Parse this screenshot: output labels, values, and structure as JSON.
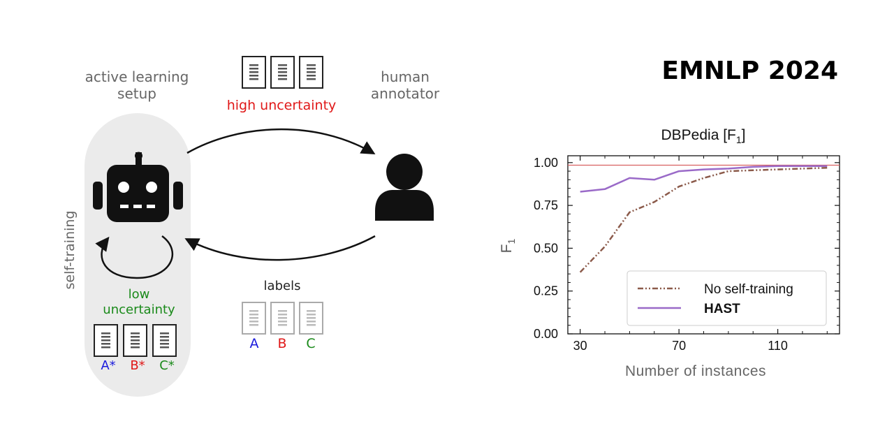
{
  "venue": "EMNLP 2024",
  "diagram": {
    "setup_label_line1": "active learning",
    "setup_label_line2": "setup",
    "annotator_label_line1": "human",
    "annotator_label_line2": "annotator",
    "high_uncertainty": "high uncertainty",
    "labels_caption": "labels",
    "self_training": "self-training",
    "low_uncertainty_line1": "low",
    "low_uncertainty_line2": "uncertainty",
    "human_labels": [
      "A",
      "B",
      "C"
    ],
    "pseudo_labels": [
      "A*",
      "B*",
      "C*"
    ],
    "colors": {
      "a": "#1a1adc",
      "b": "#e01818",
      "c": "#1a8a1a",
      "high": "#e01818",
      "low": "#1a8a1a",
      "pill": "#ebebeb"
    }
  },
  "chart_data": {
    "type": "line",
    "title": "DBPedia [F",
    "title_sub": "1",
    "title_end": "]",
    "xlabel": "Number of instances",
    "ylabel": "F",
    "ylabel_sub": "1",
    "xlim": [
      25,
      135
    ],
    "ylim": [
      0,
      1.04
    ],
    "xticks": [
      30,
      70,
      110
    ],
    "yticks": [
      "0.00",
      "0.25",
      "0.50",
      "0.75",
      "1.00"
    ],
    "ytick_values": [
      0,
      0.25,
      0.5,
      0.75,
      1.0
    ],
    "reference_line": 0.985,
    "series": [
      {
        "name": "No self-training",
        "color": "#8b5a4a",
        "style": "dashdot",
        "x": [
          30,
          40,
          50,
          60,
          70,
          80,
          90,
          100,
          110,
          120,
          130
        ],
        "y": [
          0.36,
          0.51,
          0.71,
          0.77,
          0.86,
          0.91,
          0.95,
          0.955,
          0.96,
          0.965,
          0.97
        ]
      },
      {
        "name": "HAST",
        "color": "#9a6ac8",
        "style": "solid",
        "x": [
          30,
          40,
          50,
          60,
          70,
          80,
          90,
          100,
          110,
          120,
          130
        ],
        "y": [
          0.83,
          0.845,
          0.91,
          0.9,
          0.95,
          0.96,
          0.965,
          0.975,
          0.98,
          0.98,
          0.98
        ]
      }
    ],
    "legend": [
      "No self-training",
      "HAST"
    ]
  }
}
